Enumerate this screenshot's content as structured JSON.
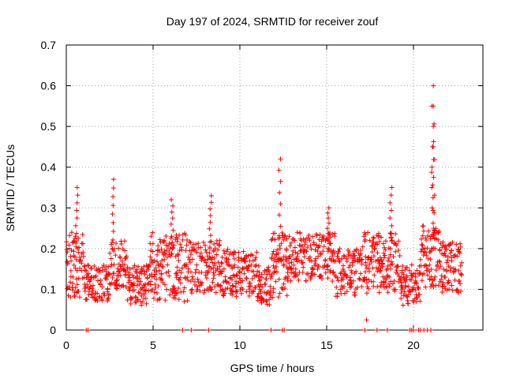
{
  "chart_data": {
    "type": "scatter",
    "title": "Day 197 of 2024, SRMTID for receiver zouf",
    "xlabel": "GPS time / hours",
    "ylabel": "SRMTID / TECUs",
    "xlim": [
      0,
      24
    ],
    "ylim": [
      0,
      0.7
    ],
    "xticks": [
      0,
      5,
      10,
      15,
      20
    ],
    "yticks": [
      0,
      0.1,
      0.2,
      0.3,
      0.4,
      0.5,
      0.6,
      0.7
    ],
    "grid": true,
    "marker": "plus",
    "color": "#ff0000",
    "data_span_hours": [
      0,
      22.8
    ],
    "peaks": [
      {
        "x": 0.6,
        "y": 0.35
      },
      {
        "x": 2.7,
        "y": 0.37
      },
      {
        "x": 6.1,
        "y": 0.32
      },
      {
        "x": 8.3,
        "y": 0.33
      },
      {
        "x": 12.3,
        "y": 0.42
      },
      {
        "x": 15.1,
        "y": 0.3
      },
      {
        "x": 18.7,
        "y": 0.35
      },
      {
        "x": 21.1,
        "y": 0.6
      },
      {
        "x": 21.2,
        "y": 0.55
      },
      {
        "x": 21.1,
        "y": 0.45
      }
    ],
    "zero_points_x": [
      1.15,
      1.25,
      6.7,
      7.2,
      8.2,
      11.8,
      12.45,
      12.55,
      17.2,
      17.9,
      18.5,
      19.8,
      19.9,
      20.0,
      20.3,
      20.4,
      20.6,
      20.8,
      21.0
    ],
    "low_points": [
      {
        "x": 17.3,
        "y": 0.025
      }
    ]
  }
}
